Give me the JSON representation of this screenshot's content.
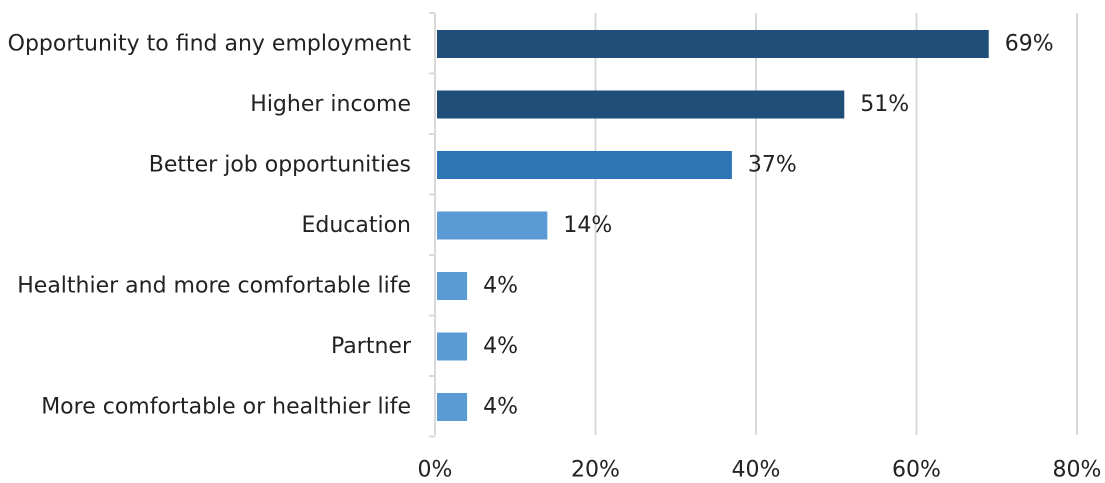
{
  "chart_data": {
    "type": "bar",
    "orientation": "horizontal",
    "categories": [
      "Opportunity to find any employment",
      "Higher income",
      "Better job opportunities",
      "Education",
      "Healthier and more comfortable life",
      "Partner",
      "More comfortable or healthier life"
    ],
    "values": [
      69,
      51,
      37,
      14,
      4,
      4,
      4
    ],
    "data_labels": [
      "69%",
      "51%",
      "37%",
      "14%",
      "4%",
      "4%",
      "4%"
    ],
    "bar_colors": [
      "#1f4e79",
      "#1f4e79",
      "#2e75b6",
      "#5b9bd5",
      "#5b9bd5",
      "#5b9bd5",
      "#5b9bd5"
    ],
    "x_ticks": [
      0,
      20,
      40,
      60,
      80
    ],
    "x_tick_labels": [
      "0%",
      "20%",
      "40%",
      "60%",
      "80%"
    ],
    "xlim": [
      0,
      80
    ],
    "grid": true,
    "legend": "none",
    "title": "",
    "xlabel": "",
    "ylabel": ""
  }
}
